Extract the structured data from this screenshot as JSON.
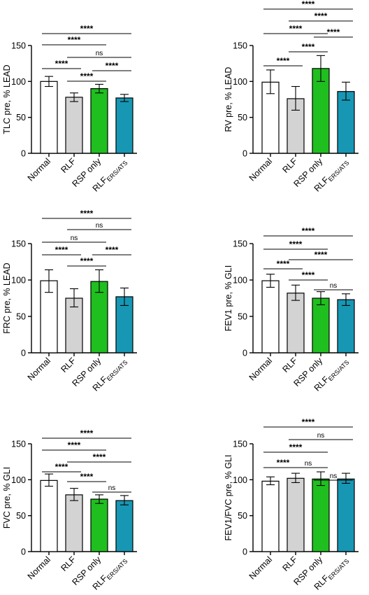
{
  "colors": {
    "Normal": "#ffffff",
    "RLF": "#d3d3d3",
    "RSP only": "#1fbf1f",
    "RLF_ERS_ATS": "#1797b4",
    "axis": "#000000"
  },
  "tick_labels": {
    "Normal": "Normal",
    "RLF": "RLF",
    "RSP only": "RSP only",
    "RLF_base": "RLF",
    "RLF_sub": "ERS/ATS"
  },
  "chart_data": [
    {
      "type": "bar",
      "ylabel": "TLC pre, % LEAD",
      "categories": [
        "Normal",
        "RLF",
        "RSP only",
        "RLF_ERS_ATS"
      ],
      "values": [
        100,
        78,
        90,
        77
      ],
      "errors": [
        [
          93,
          107
        ],
        [
          72,
          84
        ],
        [
          84,
          96
        ],
        [
          72,
          82
        ]
      ],
      "ylim": [
        0,
        150
      ],
      "yticks": [
        0,
        50,
        100,
        150
      ],
      "significance": [
        {
          "from": 0,
          "to": 3,
          "label": "****"
        },
        {
          "from": 0,
          "to": 2,
          "label": "****"
        },
        {
          "from": 1,
          "to": 3,
          "label": "ns"
        },
        {
          "from": 0,
          "to": 1,
          "label": "****"
        },
        {
          "from": 2,
          "to": 3,
          "label": "****"
        },
        {
          "from": 1,
          "to": 2,
          "label": "****"
        }
      ]
    },
    {
      "type": "bar",
      "ylabel": "RV pre, % LEAD",
      "categories": [
        "Normal",
        "RLF",
        "RSP only",
        "RLF_ERS_ATS"
      ],
      "values": [
        99,
        76,
        118,
        86
      ],
      "errors": [
        [
          83,
          116
        ],
        [
          60,
          93
        ],
        [
          100,
          136
        ],
        [
          74,
          99
        ]
      ],
      "ylim": [
        0,
        150
      ],
      "yticks": [
        0,
        50,
        100,
        150
      ],
      "significance": [
        {
          "from": 0,
          "to": 3,
          "label": "****"
        },
        {
          "from": 1,
          "to": 3,
          "label": "****"
        },
        {
          "from": 0,
          "to": 2,
          "label": "****"
        },
        {
          "from": 2,
          "to": 3,
          "label": "****"
        },
        {
          "from": 1,
          "to": 2,
          "label": "****"
        },
        {
          "from": 0,
          "to": 1,
          "label": "****"
        }
      ]
    },
    {
      "type": "bar",
      "ylabel": "FRC pre, % LEAD",
      "categories": [
        "Normal",
        "RLF",
        "RSP only",
        "RLF_ERS_ATS"
      ],
      "values": [
        99,
        75,
        98,
        77
      ],
      "errors": [
        [
          83,
          114
        ],
        [
          63,
          88
        ],
        [
          83,
          114
        ],
        [
          65,
          89
        ]
      ],
      "ylim": [
        0,
        150
      ],
      "yticks": [
        0,
        50,
        100,
        150
      ],
      "significance": [
        {
          "from": 0,
          "to": 3,
          "label": "****"
        },
        {
          "from": 1,
          "to": 3,
          "label": "ns"
        },
        {
          "from": 0,
          "to": 2,
          "label": "ns"
        },
        {
          "from": 0,
          "to": 1,
          "label": "****"
        },
        {
          "from": 2,
          "to": 3,
          "label": "****"
        },
        {
          "from": 1,
          "to": 2,
          "label": "****"
        }
      ]
    },
    {
      "type": "bar",
      "ylabel": "FEV1 pre, % GLI",
      "categories": [
        "Normal",
        "RLF",
        "RSP only",
        "RLF_ERS_ATS"
      ],
      "values": [
        99,
        82,
        75,
        73
      ],
      "errors": [
        [
          90,
          108
        ],
        [
          72,
          93
        ],
        [
          66,
          84
        ],
        [
          65,
          81
        ]
      ],
      "ylim": [
        0,
        150
      ],
      "yticks": [
        0,
        50,
        100,
        150
      ],
      "significance": [
        {
          "from": 0,
          "to": 3,
          "label": "****"
        },
        {
          "from": 0,
          "to": 2,
          "label": "****"
        },
        {
          "from": 1,
          "to": 3,
          "label": "****"
        },
        {
          "from": 0,
          "to": 1,
          "label": "****"
        },
        {
          "from": 1,
          "to": 2,
          "label": "****"
        },
        {
          "from": 2,
          "to": 3,
          "label": "ns"
        }
      ]
    },
    {
      "type": "bar",
      "ylabel": "FVC pre, % GLI",
      "categories": [
        "Normal",
        "RLF",
        "RSP only",
        "RLF_ERS_ATS"
      ],
      "values": [
        99,
        79,
        73,
        71
      ],
      "errors": [
        [
          91,
          108
        ],
        [
          71,
          88
        ],
        [
          67,
          79
        ],
        [
          65,
          78
        ]
      ],
      "ylim": [
        0,
        150
      ],
      "yticks": [
        0,
        50,
        100,
        150
      ],
      "significance": [
        {
          "from": 0,
          "to": 3,
          "label": "****"
        },
        {
          "from": 0,
          "to": 2,
          "label": "****"
        },
        {
          "from": 1,
          "to": 3,
          "label": "****"
        },
        {
          "from": 0,
          "to": 1,
          "label": "****"
        },
        {
          "from": 1,
          "to": 2,
          "label": "****"
        },
        {
          "from": 2,
          "to": 3,
          "label": "ns"
        }
      ]
    },
    {
      "type": "bar",
      "ylabel": "FEV1/FVC pre, % GLI",
      "categories": [
        "Normal",
        "RLF",
        "RSP only",
        "RLF_ERS_ATS"
      ],
      "values": [
        98,
        102,
        101,
        101
      ],
      "errors": [
        [
          93,
          104
        ],
        [
          96,
          109
        ],
        [
          92,
          111
        ],
        [
          95,
          109
        ]
      ],
      "ylim": [
        0,
        150
      ],
      "yticks": [
        0,
        50,
        100,
        150
      ],
      "significance": [
        {
          "from": 0,
          "to": 3,
          "label": "****"
        },
        {
          "from": 1,
          "to": 3,
          "label": "ns"
        },
        {
          "from": 0,
          "to": 2,
          "label": "****"
        },
        {
          "from": 0,
          "to": 1,
          "label": "****"
        },
        {
          "from": 1,
          "to": 2,
          "label": "ns"
        },
        {
          "from": 2,
          "to": 3,
          "label": "ns"
        }
      ]
    }
  ]
}
